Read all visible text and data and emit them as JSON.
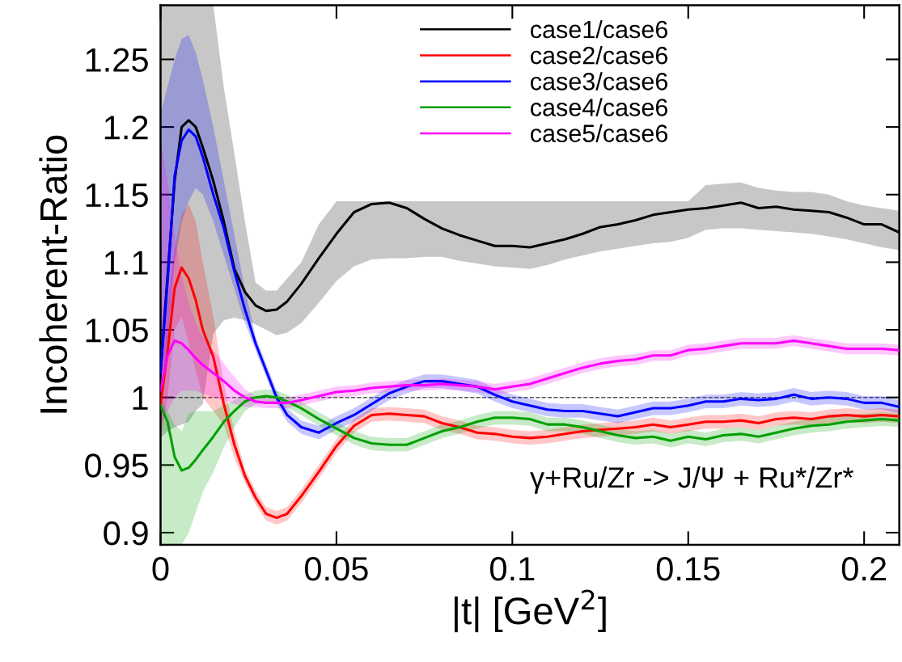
{
  "chart_data": {
    "type": "line",
    "xlabel": "|t| [GeV$^{2}$]",
    "ylabel": "Incoherent-Ratio",
    "annotations": [
      "γ+Ru/Zr -> J/Ψ + Ru*/Zr*"
    ],
    "xlim": [
      0,
      0.21
    ],
    "ylim": [
      0.891,
      1.29
    ],
    "xticks": [
      0,
      0.05,
      0.1,
      0.15,
      0.2
    ],
    "yticks": [
      0.9,
      0.95,
      1,
      1.05,
      1.1,
      1.15,
      1.2,
      1.25
    ],
    "grid": false,
    "legend": "top",
    "marker": "none",
    "line_style": "solid",
    "ref_lines": [
      {
        "axis": "y",
        "value": 1,
        "line_style": "dashed",
        "color": "#555555"
      }
    ],
    "x": [
      0,
      0.002,
      0.004,
      0.006,
      0.008,
      0.01,
      0.012,
      0.015,
      0.018,
      0.021,
      0.024,
      0.027,
      0.03,
      0.033,
      0.036,
      0.04,
      0.045,
      0.05,
      0.055,
      0.06,
      0.065,
      0.07,
      0.075,
      0.08,
      0.085,
      0.09,
      0.095,
      0.1,
      0.105,
      0.11,
      0.115,
      0.12,
      0.125,
      0.13,
      0.135,
      0.14,
      0.145,
      0.15,
      0.155,
      0.16,
      0.165,
      0.17,
      0.175,
      0.18,
      0.185,
      0.19,
      0.195,
      0.2,
      0.205,
      0.21
    ],
    "series": [
      {
        "name": "case1/case6",
        "color": "#000000",
        "values": [
          1.02,
          1.09,
          1.16,
          1.2,
          1.205,
          1.2,
          1.185,
          1.16,
          1.13,
          1.095,
          1.078,
          1.068,
          1.064,
          1.065,
          1.071,
          1.084,
          1.103,
          1.121,
          1.137,
          1.143,
          1.144,
          1.14,
          1.132,
          1.125,
          1.12,
          1.116,
          1.112,
          1.112,
          1.111,
          1.114,
          1.117,
          1.121,
          1.126,
          1.128,
          1.131,
          1.135,
          1.137,
          1.139,
          1.14,
          1.142,
          1.144,
          1.14,
          1.141,
          1.139,
          1.138,
          1.137,
          1.133,
          1.128,
          1.128,
          1.122
        ],
        "upper": [
          1.29,
          1.29,
          1.29,
          1.29,
          1.29,
          1.29,
          1.29,
          1.29,
          1.229,
          1.18,
          1.13,
          1.085,
          1.079,
          1.079,
          1.088,
          1.1,
          1.128,
          1.145,
          1.145,
          1.145,
          1.145,
          1.145,
          1.145,
          1.145,
          1.145,
          1.145,
          1.145,
          1.145,
          1.145,
          1.145,
          1.145,
          1.145,
          1.145,
          1.145,
          1.145,
          1.145,
          1.145,
          1.145,
          1.157,
          1.158,
          1.159,
          1.155,
          1.153,
          1.152,
          1.152,
          1.15,
          1.145,
          1.142,
          1.14,
          1.138
        ],
        "lower": [
          0.97,
          0.975,
          0.978,
          0.98,
          0.982,
          0.99,
          0.995,
          1.047,
          1.057,
          1.059,
          1.057,
          1.054,
          1.05,
          1.046,
          1.048,
          1.055,
          1.07,
          1.086,
          1.097,
          1.102,
          1.103,
          1.103,
          1.104,
          1.104,
          1.101,
          1.099,
          1.097,
          1.096,
          1.095,
          1.098,
          1.102,
          1.105,
          1.108,
          1.11,
          1.112,
          1.114,
          1.115,
          1.118,
          1.124,
          1.125,
          1.125,
          1.124,
          1.123,
          1.122,
          1.121,
          1.119,
          1.117,
          1.114,
          1.111,
          1.109
        ]
      },
      {
        "name": "case2/case6",
        "color": "#ff0000",
        "values": [
          0.995,
          1.034,
          1.081,
          1.096,
          1.088,
          1.072,
          1.05,
          1.03,
          0.995,
          0.965,
          0.942,
          0.926,
          0.914,
          0.911,
          0.914,
          0.927,
          0.945,
          0.964,
          0.979,
          0.987,
          0.988,
          0.987,
          0.986,
          0.981,
          0.978,
          0.974,
          0.973,
          0.971,
          0.97,
          0.971,
          0.973,
          0.975,
          0.976,
          0.977,
          0.978,
          0.98,
          0.978,
          0.98,
          0.982,
          0.982,
          0.983,
          0.981,
          0.984,
          0.985,
          0.984,
          0.986,
          0.987,
          0.986,
          0.987,
          0.986
        ],
        "upper": [
          1.02,
          1.07,
          1.11,
          1.135,
          1.143,
          1.13,
          1.1,
          1.06,
          1.01,
          0.975,
          0.947,
          0.931,
          0.919,
          0.916,
          0.919,
          0.932,
          0.95,
          0.969,
          0.984,
          0.992,
          0.993,
          0.992,
          0.991,
          0.986,
          0.983,
          0.979,
          0.978,
          0.976,
          0.975,
          0.976,
          0.978,
          0.98,
          0.981,
          0.982,
          0.983,
          0.985,
          0.983,
          0.985,
          0.987,
          0.987,
          0.988,
          0.986,
          0.989,
          0.99,
          0.989,
          0.991,
          0.992,
          0.991,
          0.992,
          0.991
        ],
        "lower": [
          0.97,
          1.0,
          1.05,
          1.06,
          1.04,
          1.02,
          1.0,
          0.99,
          0.98,
          0.955,
          0.937,
          0.921,
          0.909,
          0.906,
          0.909,
          0.922,
          0.94,
          0.959,
          0.974,
          0.982,
          0.983,
          0.982,
          0.981,
          0.976,
          0.973,
          0.969,
          0.968,
          0.966,
          0.965,
          0.966,
          0.968,
          0.97,
          0.971,
          0.972,
          0.973,
          0.975,
          0.973,
          0.975,
          0.977,
          0.977,
          0.978,
          0.976,
          0.979,
          0.98,
          0.979,
          0.981,
          0.982,
          0.981,
          0.982,
          0.981
        ]
      },
      {
        "name": "case3/case6",
        "color": "#0000ff",
        "values": [
          1.018,
          1.086,
          1.164,
          1.19,
          1.198,
          1.193,
          1.178,
          1.15,
          1.125,
          1.093,
          1.065,
          1.04,
          1.02,
          1.0,
          0.987,
          0.978,
          0.974,
          0.981,
          0.987,
          0.995,
          1.003,
          1.008,
          1.012,
          1.012,
          1.01,
          1.008,
          1.002,
          0.997,
          0.994,
          0.991,
          0.99,
          0.99,
          0.988,
          0.986,
          0.989,
          0.992,
          0.992,
          0.994,
          0.997,
          0.997,
          0.999,
          0.998,
          0.999,
          1.002,
          0.999,
          1.0,
          0.999,
          0.996,
          0.996,
          0.993
        ],
        "upper": [
          1.21,
          1.23,
          1.25,
          1.265,
          1.268,
          1.255,
          1.235,
          1.2,
          1.16,
          1.12,
          1.08,
          1.045,
          1.025,
          1.005,
          0.992,
          0.983,
          0.979,
          0.986,
          0.992,
          1.0,
          1.008,
          1.013,
          1.017,
          1.017,
          1.015,
          1.013,
          1.007,
          1.002,
          0.999,
          0.996,
          0.995,
          0.995,
          0.993,
          0.991,
          0.994,
          0.997,
          0.997,
          0.999,
          1.002,
          1.002,
          1.004,
          1.003,
          1.004,
          1.007,
          1.004,
          1.005,
          1.004,
          1.001,
          1.001,
          0.998
        ],
        "lower": [
          1.0,
          1.04,
          1.1,
          1.13,
          1.145,
          1.155,
          1.15,
          1.13,
          1.105,
          1.08,
          1.055,
          1.035,
          1.015,
          0.995,
          0.982,
          0.973,
          0.969,
          0.976,
          0.982,
          0.99,
          0.998,
          1.003,
          1.007,
          1.007,
          1.005,
          1.003,
          0.997,
          0.992,
          0.989,
          0.986,
          0.985,
          0.985,
          0.983,
          0.981,
          0.984,
          0.987,
          0.987,
          0.989,
          0.992,
          0.992,
          0.994,
          0.993,
          0.994,
          0.997,
          0.994,
          0.995,
          0.994,
          0.991,
          0.991,
          0.988
        ]
      },
      {
        "name": "case4/case6",
        "color": "#00a000",
        "values": [
          0.994,
          0.982,
          0.956,
          0.946,
          0.948,
          0.954,
          0.961,
          0.971,
          0.982,
          0.99,
          0.997,
          1.0,
          1.001,
          1.0,
          0.997,
          0.992,
          0.984,
          0.977,
          0.97,
          0.966,
          0.965,
          0.965,
          0.97,
          0.975,
          0.978,
          0.982,
          0.985,
          0.985,
          0.984,
          0.98,
          0.98,
          0.978,
          0.975,
          0.972,
          0.97,
          0.971,
          0.968,
          0.971,
          0.969,
          0.972,
          0.973,
          0.971,
          0.974,
          0.977,
          0.979,
          0.98,
          0.982,
          0.983,
          0.984,
          0.983
        ],
        "upper": [
          1.0,
          0.99,
          0.98,
          0.975,
          0.988,
          0.99,
          0.99,
          0.99,
          0.994,
          0.998,
          1.002,
          1.005,
          1.006,
          1.005,
          1.002,
          0.997,
          0.989,
          0.982,
          0.975,
          0.971,
          0.97,
          0.97,
          0.975,
          0.98,
          0.983,
          0.987,
          0.99,
          0.99,
          0.989,
          0.985,
          0.985,
          0.983,
          0.98,
          0.977,
          0.975,
          0.976,
          0.973,
          0.976,
          0.974,
          0.977,
          0.978,
          0.976,
          0.979,
          0.982,
          0.984,
          0.985,
          0.987,
          0.988,
          0.989,
          0.988
        ],
        "lower": [
          0.891,
          0.891,
          0.891,
          0.891,
          0.9,
          0.915,
          0.93,
          0.945,
          0.963,
          0.978,
          0.99,
          0.995,
          0.996,
          0.995,
          0.992,
          0.987,
          0.979,
          0.972,
          0.965,
          0.961,
          0.96,
          0.96,
          0.965,
          0.97,
          0.973,
          0.977,
          0.98,
          0.98,
          0.979,
          0.975,
          0.975,
          0.973,
          0.97,
          0.967,
          0.965,
          0.966,
          0.963,
          0.966,
          0.964,
          0.967,
          0.968,
          0.966,
          0.969,
          0.972,
          0.974,
          0.975,
          0.977,
          0.978,
          0.979,
          0.978
        ]
      },
      {
        "name": "case5/case6",
        "color": "#ff00ff",
        "values": [
          1.005,
          1.031,
          1.042,
          1.04,
          1.035,
          1.029,
          1.024,
          1.018,
          1.012,
          1.005,
          1.0,
          0.997,
          0.996,
          0.996,
          0.996,
          0.998,
          1.001,
          1.004,
          1.005,
          1.007,
          1.008,
          1.009,
          1.009,
          1.01,
          1.009,
          1.008,
          1.006,
          1.008,
          1.01,
          1.014,
          1.018,
          1.022,
          1.025,
          1.027,
          1.028,
          1.031,
          1.031,
          1.035,
          1.036,
          1.038,
          1.04,
          1.04,
          1.04,
          1.042,
          1.04,
          1.038,
          1.036,
          1.036,
          1.036,
          1.035
        ],
        "upper": [
          1.19,
          1.16,
          1.12,
          1.09,
          1.07,
          1.055,
          1.045,
          1.035,
          1.025,
          1.015,
          1.006,
          1.001,
          1.0,
          1.0,
          1.0,
          1.002,
          1.005,
          1.008,
          1.009,
          1.011,
          1.012,
          1.013,
          1.013,
          1.014,
          1.013,
          1.012,
          1.01,
          1.012,
          1.014,
          1.018,
          1.022,
          1.026,
          1.029,
          1.031,
          1.032,
          1.035,
          1.035,
          1.039,
          1.04,
          1.042,
          1.044,
          1.044,
          1.044,
          1.046,
          1.044,
          1.042,
          1.04,
          1.04,
          1.04,
          1.039
        ],
        "lower": [
          0.98,
          0.99,
          1.0,
          1.005,
          1.005,
          1.005,
          1.003,
          1.0,
          0.998,
          0.995,
          0.993,
          0.993,
          0.992,
          0.992,
          0.992,
          0.994,
          0.997,
          1.0,
          1.001,
          1.003,
          1.004,
          1.005,
          1.005,
          1.006,
          1.005,
          1.004,
          1.002,
          1.004,
          1.006,
          1.01,
          1.014,
          1.018,
          1.021,
          1.023,
          1.024,
          1.027,
          1.027,
          1.031,
          1.032,
          1.034,
          1.036,
          1.036,
          1.036,
          1.038,
          1.036,
          1.034,
          1.032,
          1.032,
          1.032,
          1.031
        ]
      }
    ]
  }
}
